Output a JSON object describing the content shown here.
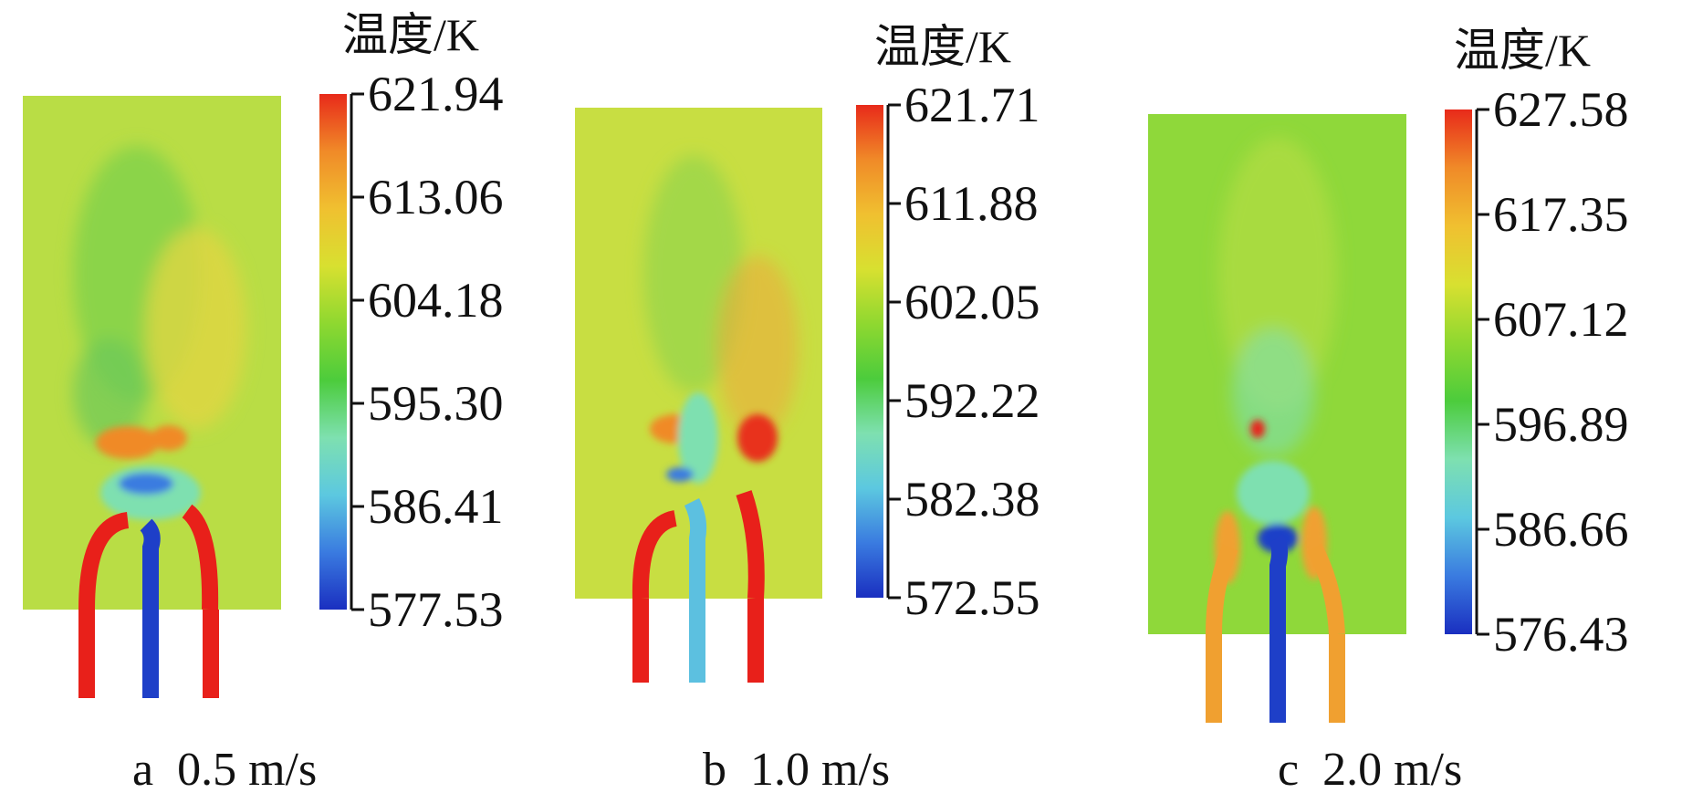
{
  "panels": [
    {
      "id": "a",
      "caption": "a  0.5 m/s",
      "colorbar_title": "温度/K",
      "ticks": [
        "621.94",
        "613.06",
        "604.18",
        "595.30",
        "586.41",
        "577.53"
      ],
      "pipe_colors": [
        "#e8201a",
        "#1e3fc8",
        "#e8201a"
      ]
    },
    {
      "id": "b",
      "caption": "b  1.0 m/s",
      "colorbar_title": "温度/K",
      "ticks": [
        "621.71",
        "611.88",
        "602.05",
        "592.22",
        "582.38",
        "572.55"
      ],
      "pipe_colors": [
        "#e8201a",
        "#5cc0e0",
        "#e8201a"
      ]
    },
    {
      "id": "c",
      "caption": "c  2.0 m/s",
      "colorbar_title": "温度/K",
      "ticks": [
        "627.58",
        "617.35",
        "607.12",
        "596.89",
        "586.66",
        "576.43"
      ],
      "pipe_colors": [
        "#f0a030",
        "#1e3fc8",
        "#f0a030"
      ]
    }
  ],
  "colormap": [
    "#1a2fc0",
    "#3a7be0",
    "#5cc8e0",
    "#7ee0b0",
    "#4ccc3c",
    "#8fd830",
    "#d8e030",
    "#f0c030",
    "#f08a28",
    "#e82a1a"
  ]
}
